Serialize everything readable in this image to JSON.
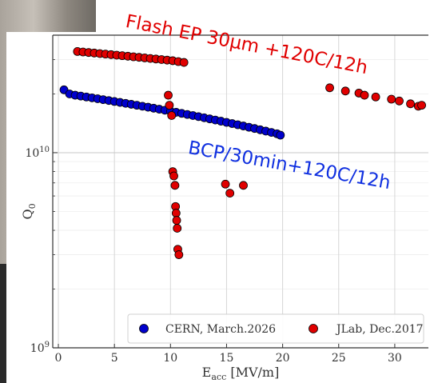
{
  "chart_data": {
    "type": "scatter",
    "xlabel": "E_acc [MV/m]",
    "ylabel": "Q_0",
    "xlim": [
      -0.5,
      33
    ],
    "ylim": [
      1000000000.0,
      40000000000.0
    ],
    "yscale": "log",
    "x_ticks": [
      "0",
      "5",
      "10",
      "15",
      "20",
      "25",
      "30"
    ],
    "y_ticks": [
      "10^9",
      "10^10"
    ],
    "grid": true,
    "legend_position": "bottom",
    "series": [
      {
        "name": "CERN, March.2026",
        "color": "#0000cc",
        "points": [
          [
            0.5,
            21000000000.0
          ],
          [
            1,
            20000000000.0
          ],
          [
            1.5,
            19700000000.0
          ],
          [
            2,
            19500000000.0
          ],
          [
            2.5,
            19300000000.0
          ],
          [
            3,
            19100000000.0
          ],
          [
            3.5,
            18900000000.0
          ],
          [
            4,
            18700000000.0
          ],
          [
            4.5,
            18500000000.0
          ],
          [
            5,
            18300000000.0
          ],
          [
            5.5,
            18100000000.0
          ],
          [
            6,
            17900000000.0
          ],
          [
            6.5,
            17700000000.0
          ],
          [
            7,
            17500000000.0
          ],
          [
            7.5,
            17300000000.0
          ],
          [
            8,
            17100000000.0
          ],
          [
            8.5,
            16900000000.0
          ],
          [
            9,
            16700000000.0
          ],
          [
            9.5,
            16500000000.0
          ],
          [
            10,
            16300000000.0
          ],
          [
            10.5,
            16100000000.0
          ],
          [
            11,
            15900000000.0
          ],
          [
            11.5,
            15700000000.0
          ],
          [
            12,
            15500000000.0
          ],
          [
            12.5,
            15300000000.0
          ],
          [
            13,
            15100000000.0
          ],
          [
            13.5,
            14900000000.0
          ],
          [
            14,
            14700000000.0
          ],
          [
            14.5,
            14500000000.0
          ],
          [
            15,
            14300000000.0
          ],
          [
            15.5,
            14100000000.0
          ],
          [
            16,
            13900000000.0
          ],
          [
            16.5,
            13700000000.0
          ],
          [
            17,
            13500000000.0
          ],
          [
            17.5,
            13300000000.0
          ],
          [
            18,
            13100000000.0
          ],
          [
            18.5,
            12900000000.0
          ],
          [
            19,
            12700000000.0
          ],
          [
            19.5,
            12500000000.0
          ],
          [
            19.8,
            12300000000.0
          ]
        ]
      },
      {
        "name": "JLab, Dec.2017",
        "color": "#e00000",
        "points": [
          [
            1.7,
            33000000000.0
          ],
          [
            2.2,
            32800000000.0
          ],
          [
            2.7,
            32600000000.0
          ],
          [
            3.2,
            32400000000.0
          ],
          [
            3.7,
            32200000000.0
          ],
          [
            4.2,
            32000000000.0
          ],
          [
            4.7,
            31800000000.0
          ],
          [
            5.2,
            31600000000.0
          ],
          [
            5.7,
            31400000000.0
          ],
          [
            6.2,
            31200000000.0
          ],
          [
            6.7,
            31000000000.0
          ],
          [
            7.2,
            30800000000.0
          ],
          [
            7.7,
            30600000000.0
          ],
          [
            8.2,
            30400000000.0
          ],
          [
            8.7,
            30200000000.0
          ],
          [
            9.2,
            30000000000.0
          ],
          [
            9.7,
            29800000000.0
          ],
          [
            10.2,
            29600000000.0
          ],
          [
            10.7,
            29300000000.0
          ],
          [
            11.2,
            29000000000.0
          ],
          [
            9.8,
            19700000000.0
          ],
          [
            9.9,
            17500000000.0
          ],
          [
            10.1,
            15500000000.0
          ],
          [
            10.2,
            8000000000.0
          ],
          [
            10.3,
            7600000000.0
          ],
          [
            10.4,
            6800000000.0
          ],
          [
            10.45,
            5300000000.0
          ],
          [
            10.5,
            4900000000.0
          ],
          [
            10.55,
            4500000000.0
          ],
          [
            10.6,
            4100000000.0
          ],
          [
            10.65,
            3200000000.0
          ],
          [
            10.75,
            3000000000.0
          ],
          [
            14.9,
            6900000000.0
          ],
          [
            15.3,
            6200000000.0
          ],
          [
            16.5,
            6800000000.0
          ],
          [
            24.2,
            21500000000.0
          ],
          [
            25.6,
            20700000000.0
          ],
          [
            26.8,
            20200000000.0
          ],
          [
            27.3,
            19700000000.0
          ],
          [
            28.3,
            19300000000.0
          ],
          [
            29.7,
            18800000000.0
          ],
          [
            30.4,
            18400000000.0
          ],
          [
            31.4,
            17800000000.0
          ],
          [
            32.1,
            17300000000.0
          ],
          [
            32.4,
            17500000000.0
          ]
        ]
      }
    ],
    "annotations": [
      {
        "text": "Flash EP 30µm +120C/12h",
        "color": "#e00000"
      },
      {
        "text": "BCP/30min+120C/12h",
        "color": "#1030e0"
      }
    ]
  }
}
